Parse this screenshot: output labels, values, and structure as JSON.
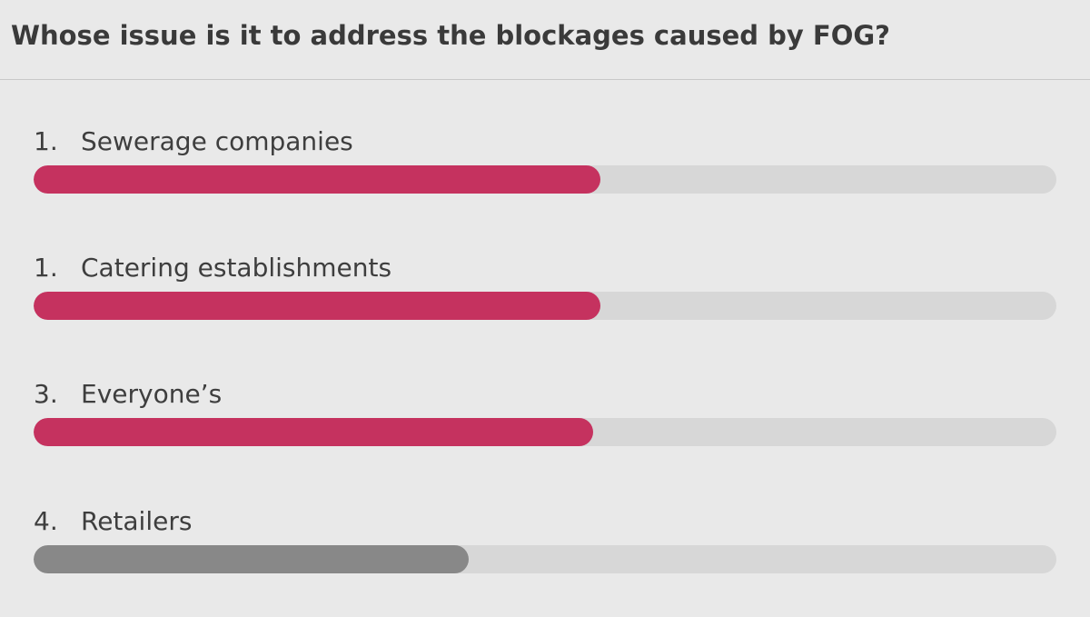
{
  "question": {
    "title": "Whose issue is it to address the blockages caused by FOG?"
  },
  "results": [
    {
      "rank": "1.",
      "label": "Sewerage companies",
      "fill_fraction": 0.554,
      "color": "#c5325f"
    },
    {
      "rank": "1.",
      "label": "Catering establishments",
      "fill_fraction": 0.554,
      "color": "#c5325f"
    },
    {
      "rank": "3.",
      "label": "Everyone’s",
      "fill_fraction": 0.547,
      "color": "#c5325f"
    },
    {
      "rank": "4.",
      "label": "Retailers",
      "fill_fraction": 0.425,
      "color": "#888888"
    }
  ],
  "colors": {
    "background": "#e9e9e9",
    "track": "#d7d7d7",
    "highlight": "#c5325f",
    "muted": "#888888"
  }
}
